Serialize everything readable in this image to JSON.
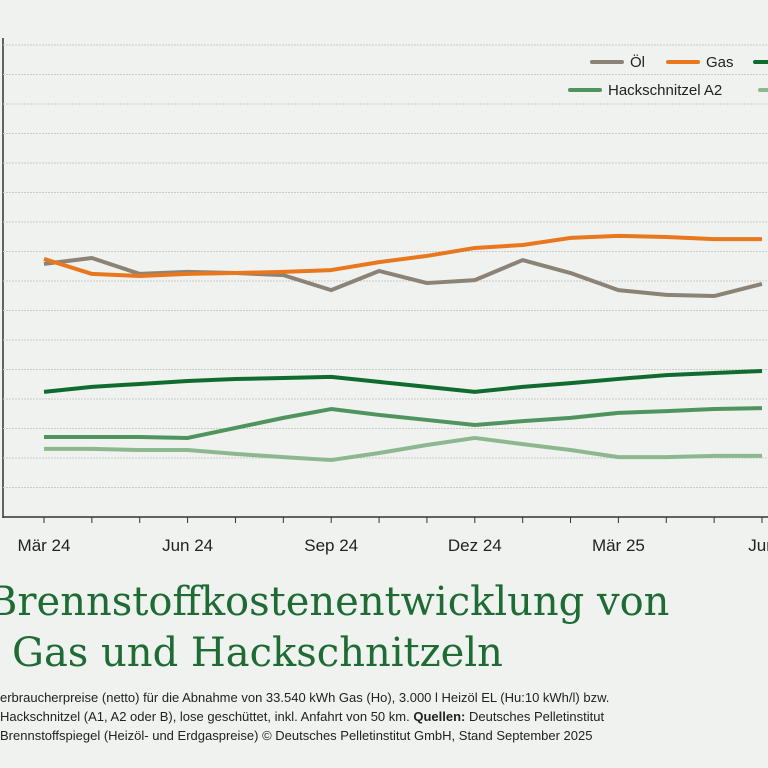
{
  "chart_data": {
    "type": "line",
    "title_lines": [
      "Brennstoffkostenentwicklung von",
      "Gas und Hackschnitzeln"
    ],
    "footnote": {
      "line1": "erbraucherpreise (netto) für die Abnahme von 33.540 kWh Gas (Ho), 3.000 l Heizöl EL (Hu:10 kWh/l) bzw.",
      "line2a": "Hackschnitzel (A1, A2 oder B), lose geschüttet, inkl. Anfahrt von 50 km.",
      "line2b": "Quellen:",
      "line2c": "Deutsches Pelletinstitut",
      "line3": "Brennstoffspiegel (Heizöl- und Erdgaspreise) © Deutsches Pelletinstitut GmbH, Stand September 2025"
    },
    "categories": [
      "Mär 24",
      null,
      null,
      "Jun 24",
      null,
      null,
      "Sep 24",
      null,
      null,
      "Dez 24",
      null,
      null,
      "Mär 25",
      null,
      null,
      "Jun"
    ],
    "ylim": [
      0,
      16
    ],
    "yticks": [
      0,
      1,
      2,
      3,
      4,
      5,
      6,
      7,
      8,
      9,
      10,
      11,
      12,
      13,
      14,
      15,
      16
    ],
    "grid": true,
    "series": [
      {
        "name": "Öl",
        "color": "#8c8377",
        "values": [
          8.58,
          8.78,
          8.24,
          8.31,
          8.27,
          8.2,
          7.69,
          8.34,
          7.93,
          8.03,
          8.71,
          8.27,
          7.69,
          7.53,
          7.49,
          7.9
        ]
      },
      {
        "name": "Gas",
        "color": "#e8771e",
        "values": [
          8.75,
          8.24,
          8.17,
          8.24,
          8.27,
          8.31,
          8.37,
          8.64,
          8.85,
          9.12,
          9.22,
          9.46,
          9.53,
          9.49,
          9.42,
          9.42
        ]
      },
      {
        "color": "#0f6b2e",
        "values": [
          4.24,
          4.41,
          4.51,
          4.61,
          4.68,
          4.71,
          4.75,
          4.58,
          4.41,
          4.24,
          4.41,
          4.54,
          4.68,
          4.81,
          4.88,
          4.95
        ]
      },
      {
        "name": "Hackschnitzel A2",
        "color": "#4f945f",
        "values": [
          2.71,
          2.71,
          2.71,
          2.68,
          3.02,
          3.36,
          3.66,
          3.46,
          3.29,
          3.12,
          3.25,
          3.36,
          3.53,
          3.59,
          3.66,
          3.69
        ]
      },
      {
        "color": "#8db88f",
        "values": [
          2.31,
          2.31,
          2.27,
          2.27,
          2.14,
          2.03,
          1.93,
          2.17,
          2.44,
          2.68,
          2.47,
          2.27,
          2.03,
          2.03,
          2.07,
          2.07
        ]
      }
    ]
  }
}
